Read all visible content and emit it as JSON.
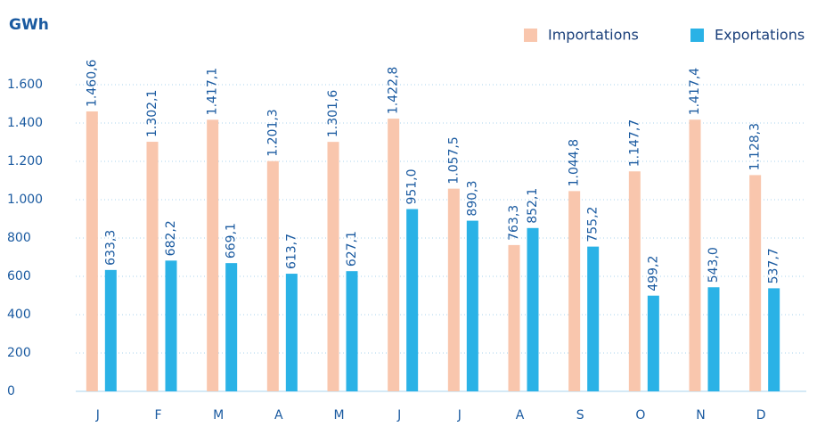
{
  "chart_data": {
    "type": "bar",
    "y_axis_label": "GWh",
    "categories": [
      "J",
      "F",
      "M",
      "A",
      "M",
      "J",
      "J",
      "A",
      "S",
      "O",
      "N",
      "D"
    ],
    "series": [
      {
        "name": "Importations",
        "color": "#f9c6ad",
        "values": [
          1460.6,
          1302.1,
          1417.1,
          1201.3,
          1301.6,
          1422.8,
          1057.5,
          763.3,
          1044.8,
          1147.7,
          1417.4,
          1128.3
        ],
        "value_labels": [
          "1.460,6",
          "1.302,1",
          "1.417,1",
          "1.201,3",
          "1.301,6",
          "1.422,8",
          "1.057,5",
          "763,3",
          "1.044,8",
          "1.147,7",
          "1.417,4",
          "1.128,3"
        ]
      },
      {
        "name": "Exportations",
        "color": "#2ab2e6",
        "values": [
          633.3,
          682.2,
          669.1,
          613.7,
          627.1,
          951.0,
          890.3,
          852.1,
          755.2,
          499.2,
          543.0,
          537.7
        ],
        "value_labels": [
          "633,3",
          "682,2",
          "669,1",
          "613,7",
          "627,1",
          "951,0",
          "890,3",
          "852,1",
          "755,2",
          "499,2",
          "543,0",
          "537,7"
        ]
      }
    ],
    "ylim": [
      0,
      1600
    ],
    "yticks": [
      0,
      200,
      400,
      600,
      800,
      {
        "value": 1000,
        "label": "1.000"
      },
      {
        "value": 1200,
        "label": "1.200"
      },
      {
        "value": 1400,
        "label": "1.400"
      },
      {
        "value": 1600,
        "label": "1.600"
      }
    ],
    "grid": true
  }
}
